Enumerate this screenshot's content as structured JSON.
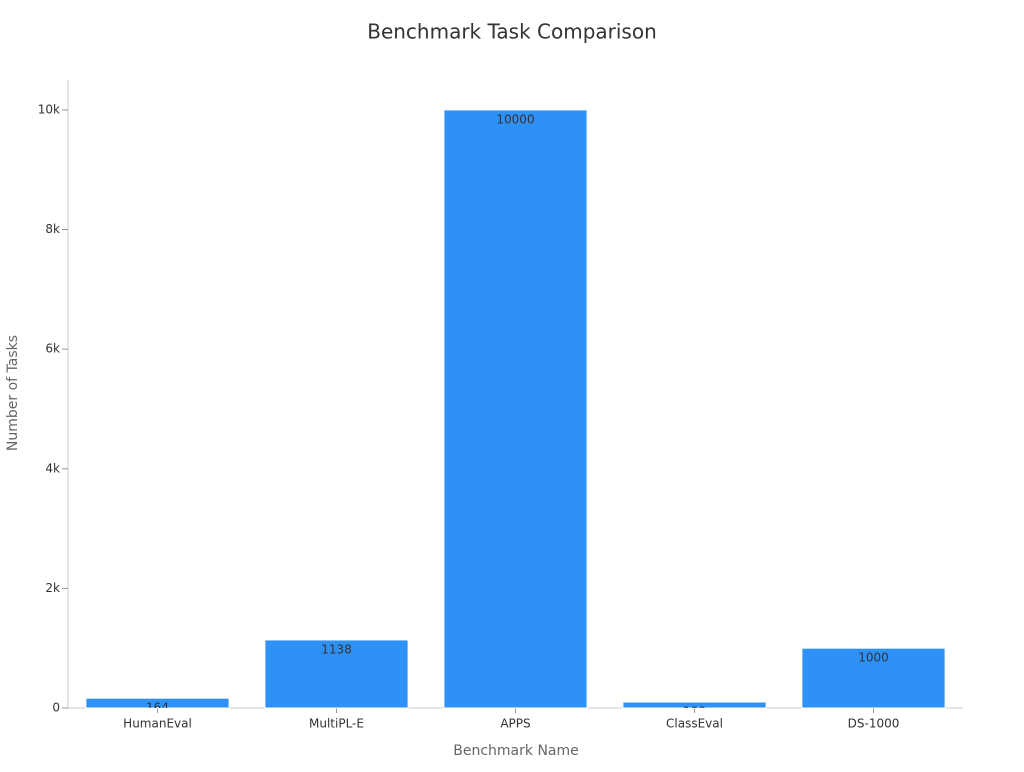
{
  "chart_data": {
    "type": "bar",
    "title": "Benchmark Task Comparison",
    "x_label": "Benchmark Name",
    "y_label": "Number of Tasks",
    "categories": [
      "HumanEval",
      "MultiPL-E",
      "APPS",
      "ClassEval",
      "DS-1000"
    ],
    "values": [
      164,
      1138,
      10000,
      100,
      1000
    ],
    "color": "#2e91f8",
    "ylim": [
      0,
      10500
    ],
    "yticks": [
      0,
      {
        "value": 2000,
        "label": "2k"
      },
      {
        "value": 4000,
        "label": "4k"
      },
      {
        "value": 6000,
        "label": "6k"
      },
      {
        "value": 8000,
        "label": "8k"
      },
      {
        "value": 10000,
        "label": "10k"
      }
    ],
    "grid": false
  }
}
